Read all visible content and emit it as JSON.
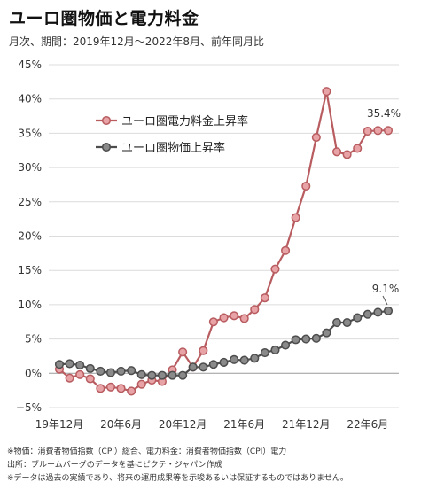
{
  "title": "ユーロ圏物価と電力料金",
  "subtitle": "月次、期間：2019年12月～2022年8月、前年同月比",
  "notes": [
    "※物価：消費者物価指数（CPI）総合、電力料金：消費者物価指数（CPI）電力",
    "出所：ブルームバーグのデータを基にピクテ・ジャパン作成",
    "※データは過去の実績であり、将来の運用成果等を示唆あるいは保証するものではありません。"
  ],
  "colors": {
    "electricity": "#b85c60",
    "cpi": "#4d4d4d",
    "grid": "#dcdcdc"
  },
  "chart_data": {
    "type": "line",
    "title": "ユーロ圏物価と電力料金",
    "ylim": [
      -5,
      45
    ],
    "yticks": [
      -5,
      0,
      5,
      10,
      15,
      20,
      25,
      30,
      35,
      40,
      45
    ],
    "ytick_labels": [
      "−5%",
      "0%",
      "5%",
      "10%",
      "15%",
      "20%",
      "25%",
      "30%",
      "35%",
      "40%",
      "45%"
    ],
    "xtick_labels": [
      {
        "label": "19年12月",
        "index": 0
      },
      {
        "label": "20年6月",
        "index": 6
      },
      {
        "label": "20年12月",
        "index": 12
      },
      {
        "label": "21年6月",
        "index": 18
      },
      {
        "label": "21年12月",
        "index": 24
      },
      {
        "label": "22年6月",
        "index": 30
      }
    ],
    "grid": true,
    "legend_position": "upper-left",
    "x": [
      "2019-12",
      "2020-01",
      "2020-02",
      "2020-03",
      "2020-04",
      "2020-05",
      "2020-06",
      "2020-07",
      "2020-08",
      "2020-09",
      "2020-10",
      "2020-11",
      "2020-12",
      "2021-01",
      "2021-02",
      "2021-03",
      "2021-04",
      "2021-05",
      "2021-06",
      "2021-07",
      "2021-08",
      "2021-09",
      "2021-10",
      "2021-11",
      "2021-12",
      "2022-01",
      "2022-02",
      "2022-03",
      "2022-04",
      "2022-05",
      "2022-06",
      "2022-07",
      "2022-08"
    ],
    "series": [
      {
        "name": "ユーロ圏電力料金上昇率",
        "color": "#b85c60",
        "end_label": "35.4%",
        "values": [
          0.6,
          -0.7,
          -0.2,
          -0.8,
          -2.2,
          -2.0,
          -2.2,
          -2.6,
          -1.6,
          -1.0,
          -1.2,
          0.5,
          3.1,
          0.9,
          3.3,
          7.5,
          8.1,
          8.4,
          8.0,
          9.3,
          11.0,
          15.2,
          17.9,
          22.7,
          27.3,
          34.4,
          41.1,
          32.3,
          31.9,
          32.8,
          35.3,
          35.4,
          35.4
        ]
      },
      {
        "name": "ユーロ圏物価上昇率",
        "color": "#4d4d4d",
        "end_label": "9.1%",
        "values": [
          1.3,
          1.4,
          1.2,
          0.7,
          0.3,
          0.1,
          0.3,
          0.4,
          -0.2,
          -0.3,
          -0.3,
          -0.3,
          -0.3,
          0.9,
          0.9,
          1.3,
          1.6,
          2.0,
          1.9,
          2.2,
          3.0,
          3.4,
          4.1,
          4.9,
          5.0,
          5.1,
          5.9,
          7.4,
          7.4,
          8.1,
          8.6,
          8.9,
          9.1
        ]
      }
    ]
  }
}
